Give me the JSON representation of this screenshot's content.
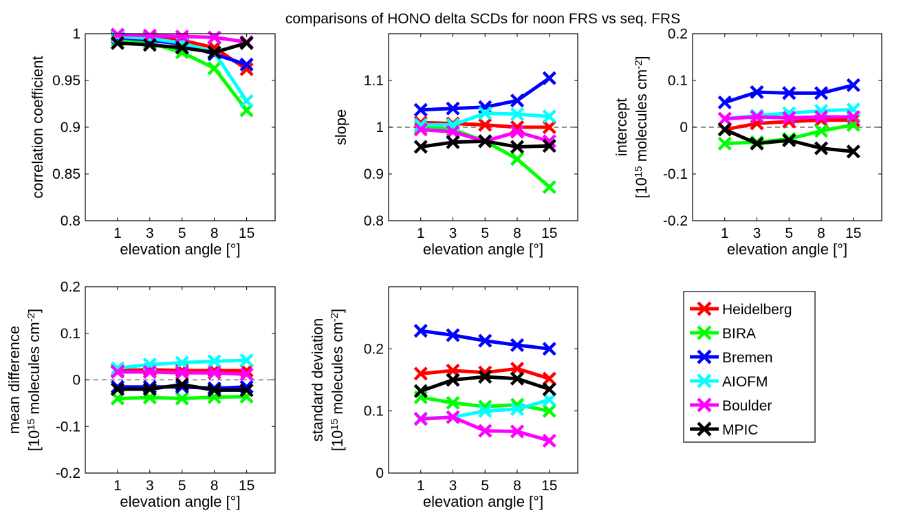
{
  "figure_title": "comparisons of HONO delta SCDs for noon FRS vs seq. FRS",
  "chart_data": [
    {
      "type": "line",
      "x": [
        1,
        3,
        5,
        8,
        15
      ],
      "x_tick_labels": [
        "1",
        "3",
        "5",
        "8",
        "15"
      ],
      "xlabel": "elevation angle [°]",
      "ylabel_lines": [
        "correlation coefficient"
      ],
      "ylim": [
        0.8,
        1.0
      ],
      "y_ticks": [
        0.8,
        0.85,
        0.9,
        0.95,
        1.0
      ],
      "y_tick_labels": [
        "0.8",
        "0.85",
        "0.9",
        "0.95",
        "1"
      ],
      "reference_line": null,
      "series": [
        {
          "name": "Heidelberg",
          "color": "#ff0000",
          "values": [
            0.998,
            0.996,
            0.993,
            0.985,
            0.962
          ]
        },
        {
          "name": "BIRA",
          "color": "#00ff00",
          "values": [
            0.993,
            0.99,
            0.98,
            0.963,
            0.918
          ]
        },
        {
          "name": "Bremen",
          "color": "#0000ff",
          "values": [
            0.996,
            0.993,
            0.989,
            0.978,
            0.967
          ]
        },
        {
          "name": "AIOFM",
          "color": "#00ffff",
          "values": [
            0.997,
            0.995,
            0.99,
            0.98,
            0.928
          ]
        },
        {
          "name": "Boulder",
          "color": "#ff00ff",
          "values": [
            0.999,
            0.998,
            0.997,
            0.996,
            0.991
          ]
        },
        {
          "name": "MPIC",
          "color": "#000000",
          "values": [
            0.99,
            0.988,
            0.985,
            0.98,
            0.99
          ]
        }
      ]
    },
    {
      "type": "line",
      "x": [
        1,
        3,
        5,
        8,
        15
      ],
      "x_tick_labels": [
        "1",
        "3",
        "5",
        "8",
        "15"
      ],
      "xlabel": "elevation angle [°]",
      "ylabel_lines": [
        "slope"
      ],
      "ylim": [
        0.8,
        1.2
      ],
      "y_ticks": [
        0.8,
        0.9,
        1.0,
        1.1
      ],
      "y_tick_labels": [
        "0.8",
        "0.9",
        "1",
        "1.1"
      ],
      "reference_line": 1.0,
      "series": [
        {
          "name": "Heidelberg",
          "color": "#ff0000",
          "values": [
            1.01,
            1.008,
            1.005,
            1.0,
            1.0
          ]
        },
        {
          "name": "BIRA",
          "color": "#00ff00",
          "values": [
            1.0,
            0.995,
            0.97,
            0.932,
            0.872
          ]
        },
        {
          "name": "Bremen",
          "color": "#0000ff",
          "values": [
            1.037,
            1.04,
            1.043,
            1.057,
            1.105
          ]
        },
        {
          "name": "AIOFM",
          "color": "#00ffff",
          "values": [
            1.005,
            1.005,
            1.03,
            1.028,
            1.023
          ]
        },
        {
          "name": "Boulder",
          "color": "#ff00ff",
          "values": [
            0.995,
            0.99,
            0.97,
            0.99,
            0.97
          ]
        },
        {
          "name": "MPIC",
          "color": "#000000",
          "values": [
            0.958,
            0.968,
            0.97,
            0.958,
            0.96
          ]
        }
      ]
    },
    {
      "type": "line",
      "x": [
        1,
        3,
        5,
        8,
        15
      ],
      "x_tick_labels": [
        "1",
        "3",
        "5",
        "8",
        "15"
      ],
      "xlabel": "elevation angle [°]",
      "ylabel_lines": [
        "intercept",
        "[10^15 molecules cm^-2]"
      ],
      "ylim": [
        -0.2,
        0.2
      ],
      "y_ticks": [
        -0.2,
        -0.1,
        0.0,
        0.1,
        0.2
      ],
      "y_tick_labels": [
        "-0.2",
        "-0.1",
        "0",
        "0.1",
        "0.2"
      ],
      "reference_line": 0.0,
      "series": [
        {
          "name": "Heidelberg",
          "color": "#ff0000",
          "values": [
            -0.005,
            0.008,
            0.012,
            0.015,
            0.015
          ]
        },
        {
          "name": "BIRA",
          "color": "#00ff00",
          "values": [
            -0.035,
            -0.032,
            -0.025,
            -0.008,
            0.005
          ]
        },
        {
          "name": "Bremen",
          "color": "#0000ff",
          "values": [
            0.053,
            0.075,
            0.073,
            0.073,
            0.09
          ]
        },
        {
          "name": "AIOFM",
          "color": "#00ffff",
          "values": [
            0.018,
            0.025,
            0.03,
            0.035,
            0.038
          ]
        },
        {
          "name": "Boulder",
          "color": "#ff00ff",
          "values": [
            0.018,
            0.022,
            0.02,
            0.022,
            0.022
          ]
        },
        {
          "name": "MPIC",
          "color": "#000000",
          "values": [
            -0.005,
            -0.035,
            -0.028,
            -0.045,
            -0.052
          ]
        }
      ]
    },
    {
      "type": "line",
      "x": [
        1,
        3,
        5,
        8,
        15
      ],
      "x_tick_labels": [
        "1",
        "3",
        "5",
        "8",
        "15"
      ],
      "xlabel": "elevation angle [°]",
      "ylabel_lines": [
        "mean difference",
        "[10^15 molecules cm^-2]"
      ],
      "ylim": [
        -0.2,
        0.2
      ],
      "y_ticks": [
        -0.2,
        -0.1,
        0.0,
        0.1,
        0.2
      ],
      "y_tick_labels": [
        "-0.2",
        "-0.1",
        "0",
        "0.1",
        "0.2"
      ],
      "reference_line": 0.0,
      "series": [
        {
          "name": "Heidelberg",
          "color": "#ff0000",
          "values": [
            0.02,
            0.022,
            0.02,
            0.02,
            0.02
          ]
        },
        {
          "name": "BIRA",
          "color": "#00ff00",
          "values": [
            -0.04,
            -0.038,
            -0.04,
            -0.037,
            -0.036
          ]
        },
        {
          "name": "Bremen",
          "color": "#0000ff",
          "values": [
            -0.015,
            -0.015,
            -0.015,
            -0.018,
            -0.015
          ]
        },
        {
          "name": "AIOFM",
          "color": "#00ffff",
          "values": [
            0.025,
            0.033,
            0.037,
            0.04,
            0.042
          ]
        },
        {
          "name": "Boulder",
          "color": "#ff00ff",
          "values": [
            0.017,
            0.017,
            0.015,
            0.015,
            0.012
          ]
        },
        {
          "name": "MPIC",
          "color": "#000000",
          "values": [
            -0.02,
            -0.02,
            -0.01,
            -0.022,
            -0.022
          ]
        }
      ]
    },
    {
      "type": "line",
      "x": [
        1,
        3,
        5,
        8,
        15
      ],
      "x_tick_labels": [
        "1",
        "3",
        "5",
        "8",
        "15"
      ],
      "xlabel": "elevation angle [°]",
      "ylabel_lines": [
        "standard deviation",
        "[10^15 molecules cm^-2]"
      ],
      "ylim": [
        0.0,
        0.3
      ],
      "y_ticks": [
        0.0,
        0.1,
        0.2
      ],
      "y_tick_labels": [
        "0",
        "0.1",
        "0.2"
      ],
      "reference_line": null,
      "series": [
        {
          "name": "Heidelberg",
          "color": "#ff0000",
          "values": [
            0.16,
            0.165,
            0.162,
            0.168,
            0.152
          ]
        },
        {
          "name": "BIRA",
          "color": "#00ff00",
          "values": [
            0.122,
            0.113,
            0.107,
            0.11,
            0.1
          ]
        },
        {
          "name": "Bremen",
          "color": "#0000ff",
          "values": [
            0.229,
            0.222,
            0.213,
            0.206,
            0.2
          ]
        },
        {
          "name": "AIOFM",
          "color": "#00ffff",
          "values": [
            0.088,
            0.09,
            0.1,
            0.103,
            0.118
          ]
        },
        {
          "name": "Boulder",
          "color": "#ff00ff",
          "values": [
            0.087,
            0.09,
            0.068,
            0.067,
            0.052
          ]
        },
        {
          "name": "MPIC",
          "color": "#000000",
          "values": [
            0.132,
            0.15,
            0.155,
            0.152,
            0.135
          ]
        }
      ]
    }
  ],
  "legend": {
    "entries": [
      {
        "label": "Heidelberg",
        "color": "#ff0000"
      },
      {
        "label": "BIRA",
        "color": "#00ff00"
      },
      {
        "label": "Bremen",
        "color": "#0000ff"
      },
      {
        "label": "AIOFM",
        "color": "#00ffff"
      },
      {
        "label": "Boulder",
        "color": "#ff00ff"
      },
      {
        "label": "MPIC",
        "color": "#000000"
      }
    ]
  }
}
